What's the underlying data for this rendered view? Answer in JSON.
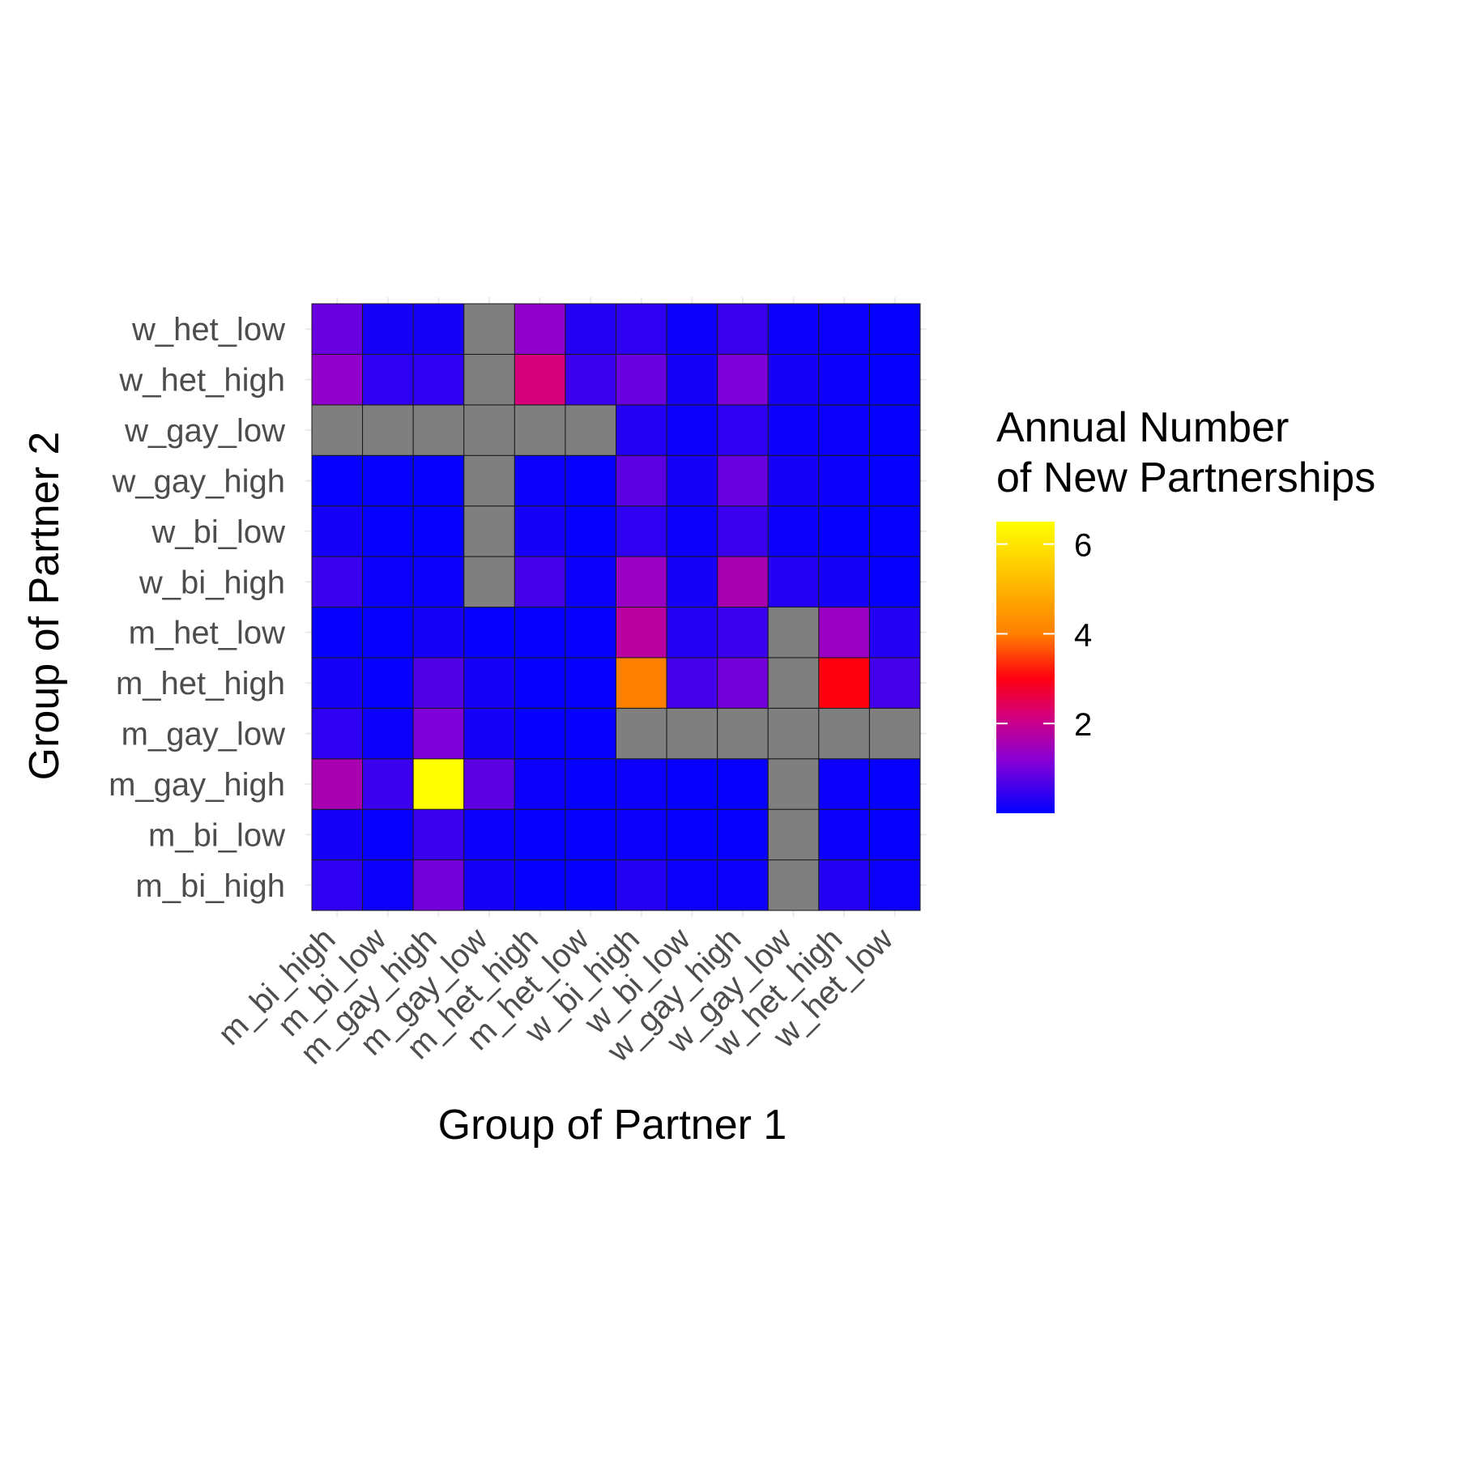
{
  "chart_data": {
    "type": "heatmap",
    "xlabel": "Group of Partner 1",
    "ylabel": "Group of Partner 2",
    "x_categories": [
      "m_bi_high",
      "m_bi_low",
      "m_gay_high",
      "m_gay_low",
      "m_het_high",
      "m_het_low",
      "w_bi_high",
      "w_bi_low",
      "w_gay_high",
      "w_gay_low",
      "w_het_high",
      "w_het_low"
    ],
    "y_categories": [
      "m_bi_high",
      "m_bi_low",
      "m_gay_high",
      "m_gay_low",
      "m_het_high",
      "m_het_low",
      "w_bi_high",
      "w_bi_low",
      "w_gay_high",
      "w_gay_low",
      "w_het_high",
      "w_het_low"
    ],
    "values": [
      [
        0.4,
        0.1,
        1.0,
        0.2,
        0.05,
        0.05,
        0.3,
        0.1,
        0.1,
        null,
        0.3,
        0.1
      ],
      [
        0.2,
        0.05,
        0.5,
        0.1,
        0.05,
        0.05,
        0.1,
        0.05,
        0.05,
        null,
        0.1,
        0.05
      ],
      [
        1.6,
        0.5,
        6.5,
        0.8,
        0.1,
        0.05,
        0.1,
        0.05,
        0.05,
        null,
        0.1,
        0.05
      ],
      [
        0.4,
        0.1,
        1.1,
        0.2,
        0.05,
        0.05,
        null,
        null,
        null,
        null,
        null,
        null
      ],
      [
        0.2,
        0.05,
        0.7,
        0.2,
        0.05,
        0.05,
        4.0,
        0.6,
        1.0,
        null,
        3.0,
        0.6
      ],
      [
        0.05,
        0.05,
        0.2,
        0.05,
        0.05,
        0.05,
        1.8,
        0.3,
        0.5,
        null,
        1.4,
        0.3
      ],
      [
        0.5,
        0.1,
        0.1,
        null,
        0.6,
        0.1,
        1.4,
        0.2,
        1.6,
        0.3,
        0.2,
        0.05
      ],
      [
        0.2,
        0.05,
        0.05,
        null,
        0.2,
        0.05,
        0.4,
        0.1,
        0.5,
        0.1,
        0.05,
        0.05
      ],
      [
        0.05,
        0.05,
        0.05,
        null,
        0.1,
        0.05,
        0.8,
        0.2,
        0.9,
        0.2,
        0.1,
        0.05
      ],
      [
        null,
        null,
        null,
        null,
        null,
        null,
        0.3,
        0.1,
        0.4,
        0.1,
        0.1,
        0.05
      ],
      [
        1.3,
        0.4,
        0.4,
        null,
        2.2,
        0.5,
        0.9,
        0.2,
        1.1,
        0.2,
        0.1,
        0.05
      ],
      [
        0.9,
        0.2,
        0.2,
        null,
        1.3,
        0.3,
        0.4,
        0.1,
        0.5,
        0.1,
        0.1,
        0.05
      ]
    ],
    "missing_color": "#7f7f7f",
    "color_scale": {
      "min": 0,
      "max": 6.5,
      "stops": [
        {
          "value": 0,
          "color": "#0000ff"
        },
        {
          "value": 1.2,
          "color": "#8a00d4"
        },
        {
          "value": 2.2,
          "color": "#d6007a"
        },
        {
          "value": 3.0,
          "color": "#ff0010"
        },
        {
          "value": 4.0,
          "color": "#ff7f00"
        },
        {
          "value": 6.5,
          "color": "#ffff00"
        }
      ]
    },
    "legend": {
      "title_lines": [
        "Annual Number",
        "of New Partnerships"
      ],
      "ticks": [
        2,
        4,
        6
      ],
      "placement": "right"
    },
    "grid": true
  }
}
